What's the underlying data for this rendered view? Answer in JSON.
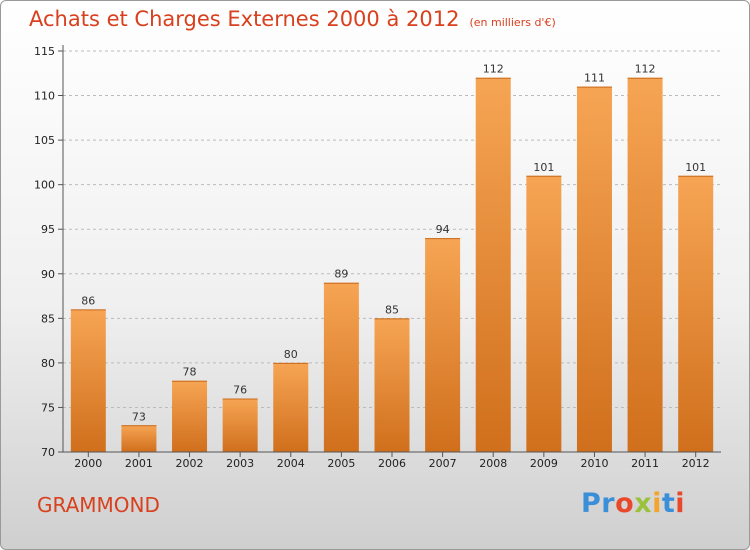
{
  "header": {
    "title": "Achats et Charges Externes 2000 à 2012",
    "unit": "(en milliers d'€)"
  },
  "footer": {
    "place": "GRAMMOND",
    "logo_letters": [
      "P",
      "r",
      "o",
      "x",
      "i",
      "t",
      "i"
    ],
    "logo_colors": [
      "#3a8fd8",
      "#3a8fd8",
      "#e8492b",
      "#9bc23c",
      "#f2a52a",
      "#3a8fd8",
      "#e8492b"
    ]
  },
  "colors": {
    "title": "#d8401e",
    "bar_top": "#f6a554",
    "bar_bottom": "#d06f1c",
    "grid": "#bbbbbb"
  },
  "chart_data": {
    "type": "bar",
    "title": "Achats et Charges Externes 2000 à 2012",
    "subtitle": "(en milliers d'€)",
    "xlabel": "",
    "ylabel": "",
    "categories": [
      "2000",
      "2001",
      "2002",
      "2003",
      "2004",
      "2005",
      "2006",
      "2007",
      "2008",
      "2009",
      "2010",
      "2011",
      "2012"
    ],
    "values": [
      86,
      73,
      78,
      76,
      80,
      89,
      85,
      94,
      112,
      101,
      111,
      112,
      101
    ],
    "ylim": [
      70,
      115
    ],
    "yticks": [
      70,
      75,
      80,
      85,
      90,
      95,
      100,
      105,
      110,
      115
    ],
    "grid": true,
    "data_labels": true
  }
}
